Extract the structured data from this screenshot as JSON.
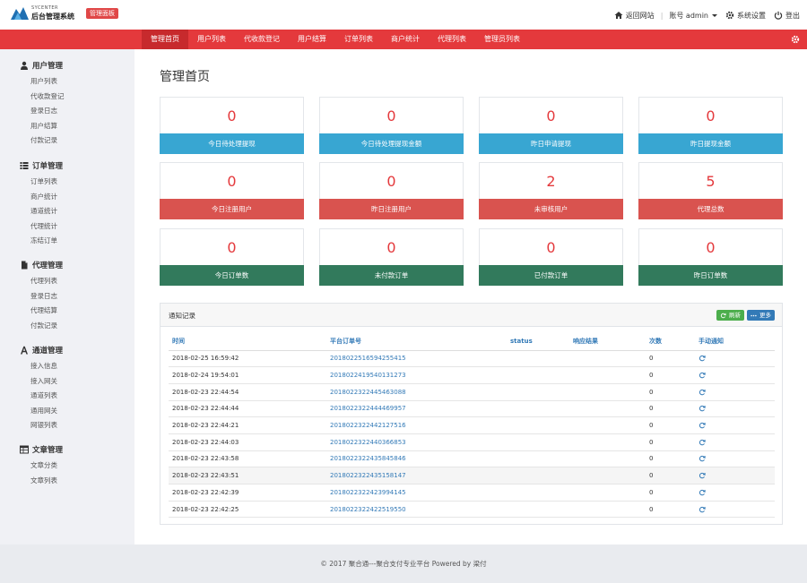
{
  "header": {
    "logo_sub": "SYCENTER",
    "logo_title": "后台管理系统",
    "badge": "管理面板",
    "back_site": "返回网站",
    "account": "账号 admin",
    "settings": "系统设置",
    "logout": "登出"
  },
  "nav": {
    "items": [
      "管理首页",
      "用户列表",
      "代收款登记",
      "用户结算",
      "订单列表",
      "商户统计",
      "代理列表",
      "管理员列表"
    ],
    "active": "管理首页"
  },
  "sidebar": {
    "groups": [
      {
        "title": "用户管理",
        "icon": "user-icon",
        "links": [
          "用户列表",
          "代收款登记",
          "登录日志",
          "用户结算",
          "付款记录"
        ]
      },
      {
        "title": "订单管理",
        "icon": "list-icon",
        "links": [
          "订单列表",
          "商户统计",
          "通道统计",
          "代理统计",
          "冻结订单"
        ]
      },
      {
        "title": "代理管理",
        "icon": "file-icon",
        "links": [
          "代理列表",
          "登录日志",
          "代理结算",
          "付款记录"
        ]
      },
      {
        "title": "通道管理",
        "icon": "font-icon",
        "links": [
          "接入信息",
          "接入网关",
          "通道列表",
          "通用网关",
          "网银列表"
        ]
      },
      {
        "title": "文章管理",
        "icon": "table-icon",
        "links": [
          "文章分类",
          "文章列表"
        ]
      }
    ]
  },
  "main": {
    "title": "管理首页",
    "cards": [
      {
        "value": "0",
        "label": "今日待处理提现",
        "color": "#38a6d2"
      },
      {
        "value": "0",
        "label": "今日待处理提现金额",
        "color": "#38a6d2"
      },
      {
        "value": "0",
        "label": "昨日申请提现",
        "color": "#38a6d2"
      },
      {
        "value": "0",
        "label": "昨日提现金额",
        "color": "#38a6d2"
      },
      {
        "value": "0",
        "label": "今日注册用户",
        "color": "#d9534f"
      },
      {
        "value": "0",
        "label": "昨日注册用户",
        "color": "#d9534f"
      },
      {
        "value": "2",
        "label": "未审核用户",
        "color": "#d9534f"
      },
      {
        "value": "5",
        "label": "代理总数",
        "color": "#d9534f"
      },
      {
        "value": "0",
        "label": "今日订单数",
        "color": "#327a5c"
      },
      {
        "value": "0",
        "label": "未付款订单",
        "color": "#327a5c"
      },
      {
        "value": "0",
        "label": "已付款订单",
        "color": "#327a5c"
      },
      {
        "value": "0",
        "label": "昨日订单数",
        "color": "#327a5c"
      }
    ]
  },
  "panel": {
    "title": "通知记录",
    "refresh": "刷新",
    "more": "更多",
    "columns": [
      "时间",
      "平台订单号",
      "status",
      "响应结果",
      "次数",
      "手动通知"
    ],
    "rows": [
      {
        "time": "2018-02-25 16:59:42",
        "order": "2018022516594255415",
        "status": "",
        "response": "",
        "count": "0"
      },
      {
        "time": "2018-02-24 19:54:01",
        "order": "2018022419540131273",
        "status": "",
        "response": "",
        "count": "0"
      },
      {
        "time": "2018-02-23 22:44:54",
        "order": "2018022322445463088",
        "status": "",
        "response": "",
        "count": "0"
      },
      {
        "time": "2018-02-23 22:44:44",
        "order": "2018022322444469957",
        "status": "",
        "response": "",
        "count": "0"
      },
      {
        "time": "2018-02-23 22:44:21",
        "order": "2018022322442127516",
        "status": "",
        "response": "",
        "count": "0"
      },
      {
        "time": "2018-02-23 22:44:03",
        "order": "2018022322440366853",
        "status": "",
        "response": "",
        "count": "0"
      },
      {
        "time": "2018-02-23 22:43:58",
        "order": "2018022322435845846",
        "status": "",
        "response": "",
        "count": "0"
      },
      {
        "time": "2018-02-23 22:43:51",
        "order": "2018022322435158147",
        "status": "",
        "response": "",
        "count": "0"
      },
      {
        "time": "2018-02-23 22:42:39",
        "order": "2018022322423994145",
        "status": "",
        "response": "",
        "count": "0"
      },
      {
        "time": "2018-02-23 22:42:25",
        "order": "2018022322422519550",
        "status": "",
        "response": "",
        "count": "0"
      }
    ]
  },
  "footer": {
    "text": "© 2017  聚合通---聚合支付专业平台 Powered by 梁付"
  }
}
